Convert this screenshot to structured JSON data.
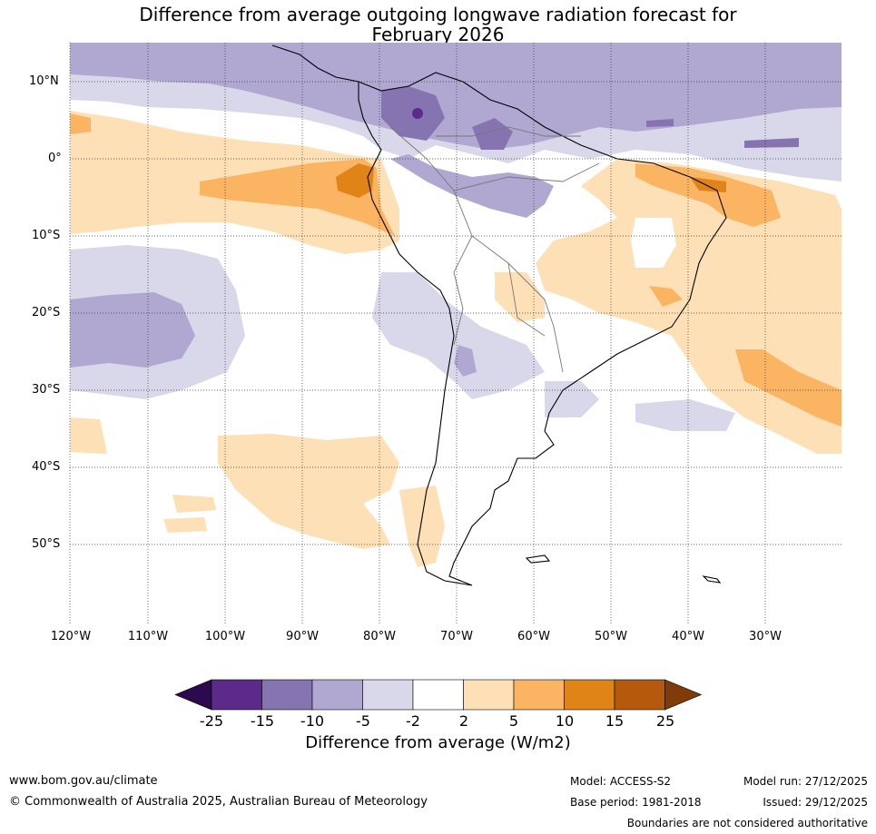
{
  "title_line1": "Difference from average outgoing longwave radiation forecast for",
  "title_line2": "February 2026",
  "latitudes": [
    "10°N",
    "0°",
    "10°S",
    "20°S",
    "30°S",
    "40°S",
    "50°S"
  ],
  "longitudes": [
    "120°W",
    "110°W",
    "100°W",
    "90°W",
    "80°W",
    "70°W",
    "60°W",
    "50°W",
    "40°W",
    "30°W"
  ],
  "legend": {
    "ticks": [
      "-25",
      "-15",
      "-10",
      "-5",
      "-2",
      "2",
      "5",
      "10",
      "15",
      "25"
    ],
    "colors": [
      "#2d0a4e",
      "#5c2a8a",
      "#8574b0",
      "#b1a8d2",
      "#d8d8ea",
      "#ffffff",
      "#fde0b6",
      "#fbb462",
      "#e08418",
      "#b55a0c",
      "#7f3b08"
    ],
    "units": "Difference from average (W/m2)"
  },
  "footer": {
    "website": "www.bom.gov.au/climate",
    "copyright": "© Commonwealth of Australia 2025, Australian Bureau of Meteorology",
    "model": "Model: ACCESS-S2",
    "base_period": "Base period: 1981-2018",
    "model_run": "Model run: 27/12/2025",
    "issued": "Issued: 29/12/2025",
    "disclaimer": "Boundaries are not considered authoritative"
  }
}
